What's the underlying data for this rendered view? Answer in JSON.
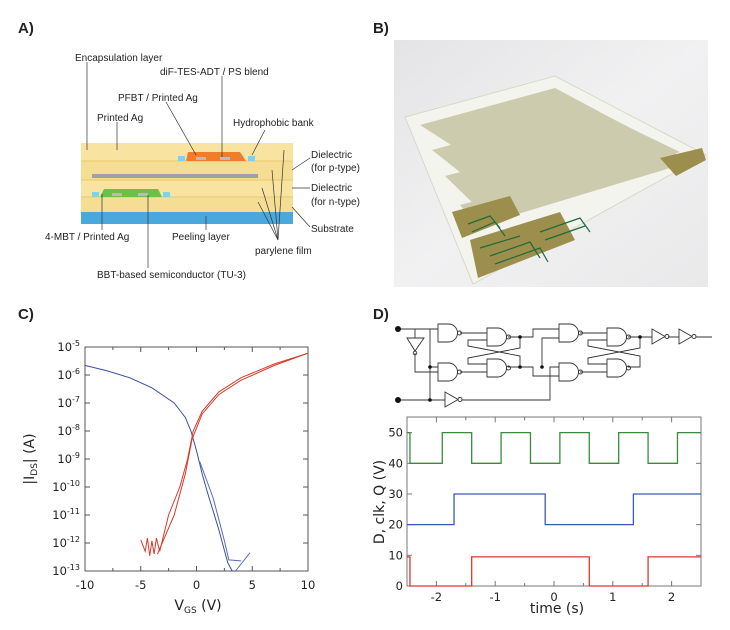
{
  "panels": {
    "a": "A)",
    "b": "B)",
    "c": "C)",
    "d": "D)"
  },
  "panel_a": {
    "labels": {
      "encapsulation": "Encapsulation layer",
      "dif_tes": "diF-TES-ADT / PS blend",
      "pfbt": "PFBT / Printed Ag",
      "printed_ag": "Printed Ag",
      "hydrophobic": "Hydrophobic bank",
      "diel_p1": "Dielectric",
      "diel_p2": "(for p-type)",
      "diel_n1": "Dielectric",
      "diel_n2": "(for n-type)",
      "substrate": "Substrate",
      "mbt": "4-MBT / Printed Ag",
      "peeling": "Peeling layer",
      "parylene": "parylene film",
      "bbt": "BBT-based semiconductor (TU-3)"
    },
    "colors": {
      "layer": "#f7e199",
      "layer_line": "#e8c96a",
      "peeling": "#4aa8dc",
      "p_semiconductor": "#f07d2a",
      "n_semiconductor": "#6cc04a",
      "bank": "#7fd3e6",
      "electrode": "#a8a8a8"
    }
  },
  "chart_data": [
    {
      "panel": "C",
      "type": "line",
      "xlabel": "V",
      "xlabel_sub": "GS",
      "xlabel_unit": " (V)",
      "ylabel_pre": "|I",
      "ylabel_sub": "DS",
      "ylabel_post": "| (A)",
      "y_scale": "log",
      "xlim": [
        -10,
        10
      ],
      "ylim": [
        1e-13,
        1e-05
      ],
      "x_ticks": [
        "-10",
        "-5",
        "0",
        "5",
        "10"
      ],
      "y_ticks": [
        {
          "base": "10",
          "exp": "-5"
        },
        {
          "base": "10",
          "exp": "-6"
        },
        {
          "base": "10",
          "exp": "-7"
        },
        {
          "base": "10",
          "exp": "-8"
        },
        {
          "base": "10",
          "exp": "-9"
        },
        {
          "base": "10",
          "exp": "-10"
        },
        {
          "base": "10",
          "exp": "-11"
        },
        {
          "base": "10",
          "exp": "-12"
        },
        {
          "base": "10",
          "exp": "-13"
        }
      ],
      "series": [
        {
          "color": "#3b4fa0",
          "points": [
            [
              -10,
              2.2e-06
            ],
            [
              -8,
              1.4e-06
            ],
            [
              -6,
              8e-07
            ],
            [
              -4,
              3.5e-07
            ],
            [
              -2,
              1e-07
            ],
            [
              -1,
              3e-08
            ],
            [
              -0.5,
              1e-08
            ],
            [
              0,
              2e-09
            ],
            [
              0.5,
              3e-10
            ],
            [
              1,
              6e-11
            ],
            [
              2,
              3e-12
            ],
            [
              2.8,
              2e-13
            ],
            [
              3.2,
              1e-13
            ]
          ]
        },
        {
          "color": "#5a6ab8",
          "points": [
            [
              0.3,
              8e-10
            ],
            [
              1.5,
              4e-11
            ],
            [
              2.5,
              1.2e-12
            ],
            [
              2.9,
              2.5e-13
            ],
            [
              4,
              2.3e-13
            ]
          ]
        },
        {
          "color": "#5a6ab8",
          "points": [
            [
              3.5,
              1e-13
            ],
            [
              4.8,
              4.5e-13
            ]
          ]
        },
        {
          "color": "#d9392b",
          "points": [
            [
              -5,
              1.3e-12
            ],
            [
              -4.6,
              5e-13
            ],
            [
              -4.4,
              1.5e-12
            ],
            [
              -4.2,
              3.5e-13
            ],
            [
              -4,
              1.2e-12
            ],
            [
              -3.8,
              4e-13
            ],
            [
              -3.6,
              1.5e-12
            ],
            [
              -3.3,
              5e-13
            ],
            [
              -2.5,
              1e-11
            ],
            [
              -1.5,
              1e-10
            ],
            [
              -0.8,
              1e-09
            ],
            [
              -0.3,
              1e-08
            ],
            [
              0.5,
              5e-08
            ],
            [
              2,
              2.5e-07
            ],
            [
              4,
              8e-07
            ],
            [
              7,
              2.5e-06
            ],
            [
              10,
              6e-06
            ]
          ]
        },
        {
          "color": "#d9392b",
          "points": [
            [
              -3.5,
              4e-13
            ],
            [
              -2,
              1e-11
            ],
            [
              -1,
              3e-10
            ],
            [
              -0.4,
              5e-09
            ],
            [
              0.5,
              4e-08
            ],
            [
              2,
              2e-07
            ],
            [
              4,
              6.5e-07
            ],
            [
              7,
              2.2e-06
            ],
            [
              10,
              6e-06
            ]
          ]
        }
      ]
    },
    {
      "panel": "D",
      "type": "line",
      "xlabel": "time (s)",
      "ylabel": "D, clk, Q (V)",
      "xlim": [
        -2.5,
        2.5
      ],
      "ylim": [
        0,
        55
      ],
      "x_ticks": [
        "-2",
        "-1",
        "0",
        "1",
        "2"
      ],
      "y_ticks": [
        "0",
        "10",
        "20",
        "30",
        "40",
        "50"
      ],
      "series": [
        {
          "color": "#3c8a3c",
          "steps": [
            [
              -2.5,
              50
            ],
            [
              -2.45,
              40
            ],
            [
              -1.9,
              50
            ],
            [
              -1.4,
              40
            ],
            [
              -0.9,
              50
            ],
            [
              -0.4,
              40
            ],
            [
              0.1,
              50
            ],
            [
              0.6,
              40
            ],
            [
              1.1,
              50
            ],
            [
              1.6,
              40
            ],
            [
              2.1,
              50
            ],
            [
              2.5,
              50
            ]
          ]
        },
        {
          "color": "#3b5bb0",
          "steps": [
            [
              -2.5,
              20
            ],
            [
              -1.7,
              30
            ],
            [
              -0.15,
              20
            ],
            [
              1.35,
              30
            ],
            [
              2.5,
              30
            ]
          ]
        },
        {
          "color": "#d9392b",
          "steps": [
            [
              -2.5,
              9.5
            ],
            [
              -2.45,
              0
            ],
            [
              -1.4,
              9.5
            ],
            [
              0.6,
              0
            ],
            [
              1.6,
              9.5
            ],
            [
              2.5,
              9.5
            ]
          ]
        }
      ]
    }
  ]
}
